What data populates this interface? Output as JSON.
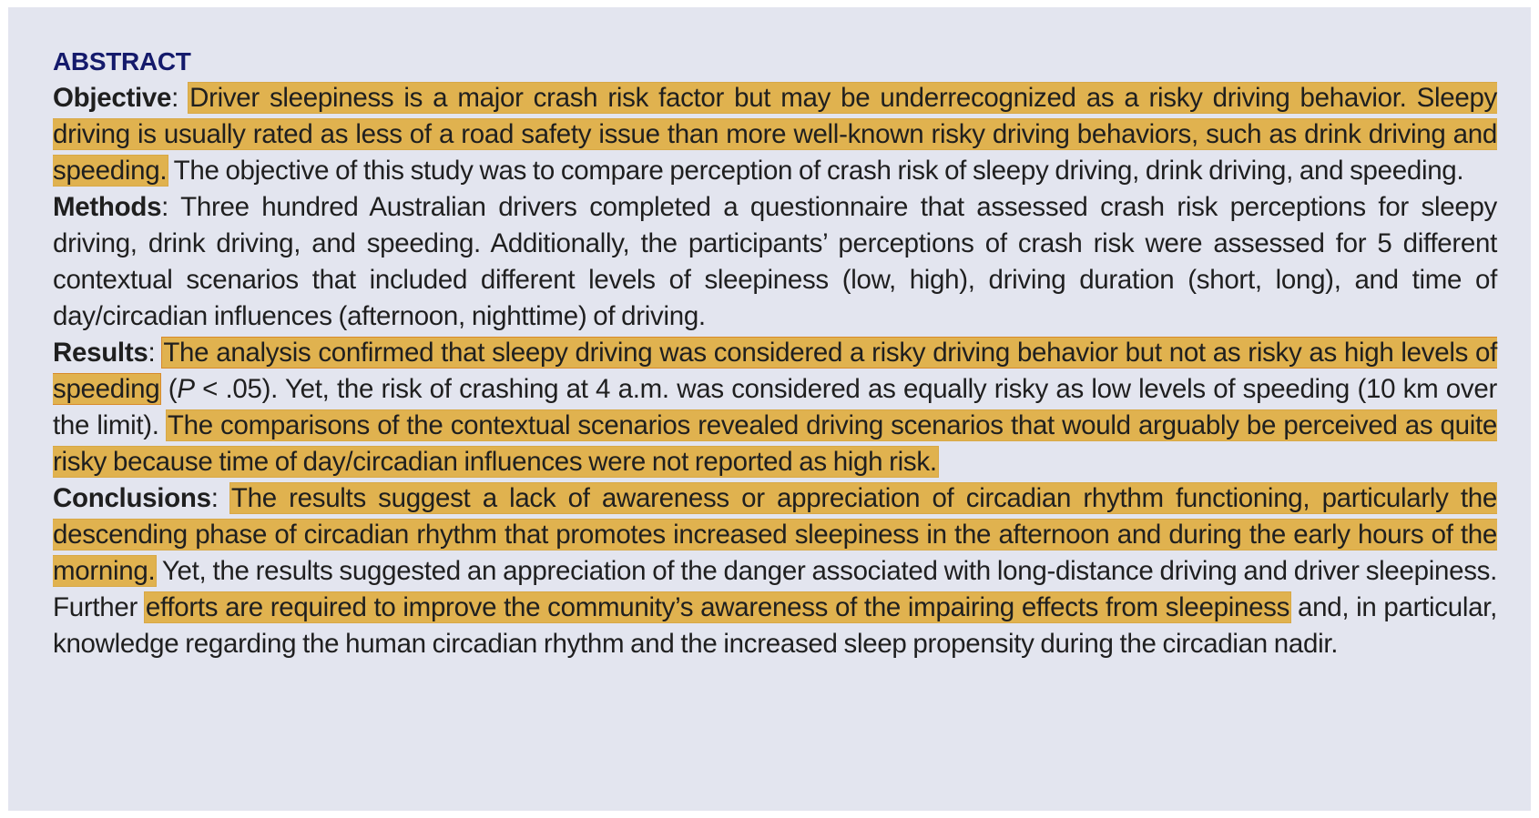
{
  "abstract": {
    "heading": "ABSTRACT",
    "objective": {
      "label": "Objective",
      "sep": ": ",
      "hl1": "Driver sleepiness is a major crash risk factor but may be underrecognized as a risky driving behavior. Sleepy driving is usually rated as less of a road safety issue than more well-known risky driving behaviors, such as drink driving and speeding.",
      "text1": " The objective of this study was to compare perception of crash risk of sleepy driving, drink driving, and speeding."
    },
    "methods": {
      "label": "Methods",
      "sep": ": ",
      "text1": "Three hundred Australian drivers completed a questionnaire that assessed crash risk perceptions for sleepy driving, drink driving, and speeding. Additionally, the participants’ perceptions of crash risk were assessed for 5 different contextual scenarios that included different levels of sleepiness (low, high), driving duration (short, long), and time of day/circadian influences (afternoon, nighttime) of driving."
    },
    "results": {
      "label": "Results",
      "sep": ": ",
      "hl1": "The analysis confirmed that sleepy driving was considered a risky driving behavior but not as risky as high levels of speeding",
      "text1a": " (",
      "p_ital": "P",
      "text1b": " < .05). Yet, the risk of crashing at 4 a.m. was considered as equally risky as low levels of speeding (10 km over the limit).",
      "hl2": "The comparisons of the contextual scenarios revealed driving scenarios that would arguably be perceived as quite risky because time of day/circadian influences were not reported as high risk."
    },
    "conclusions": {
      "label": "Conclusions",
      "sep": ": ",
      "hl1": "The results suggest a lack of awareness or appreciation of circadian rhythm functioning, particularly the descending phase of circadian rhythm that promotes increased sleepiness in the afternoon and during the early hours of the morning.",
      "text1": " Yet, the results suggested an appreciation of the danger associated with long-distance driving and driver sleepiness. Further ",
      "hl2": "efforts are required to improve the community’s awareness of the impairing effects from sleepiness",
      "text2": " and, in particular, knowledge regarding the human circadian rhythm and the increased sleep propensity during the circadian nadir."
    }
  },
  "colors": {
    "panel_bg": "#e3e5ef",
    "heading": "#141a6b",
    "highlight": "#e0b24f"
  }
}
